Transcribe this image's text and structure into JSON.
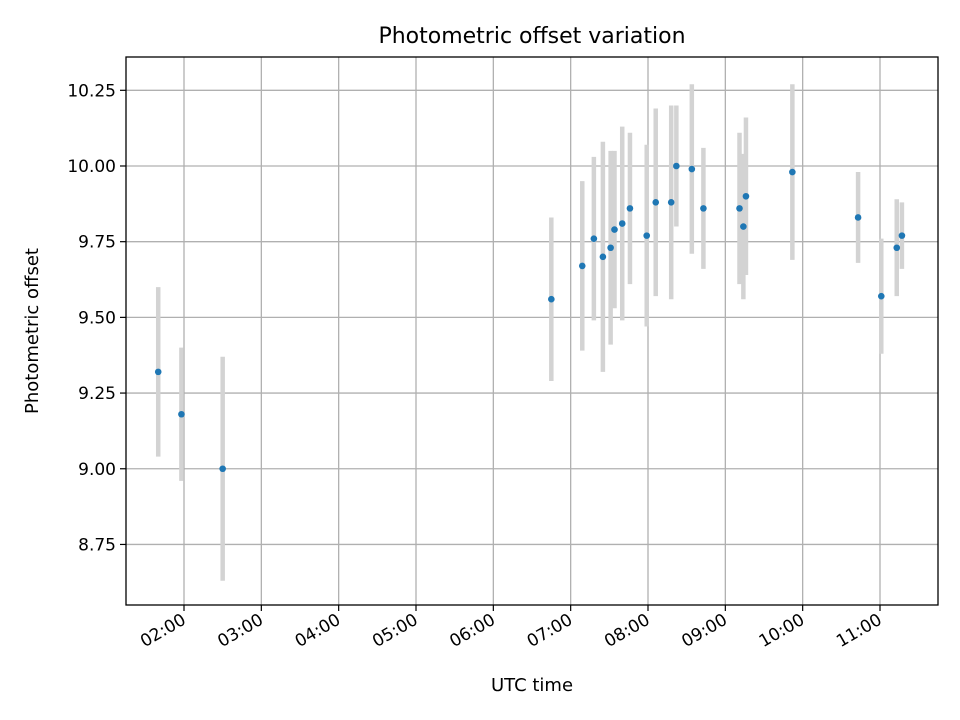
{
  "chart_data": {
    "type": "scatter",
    "title": "Photometric offset variation",
    "xlabel": "UTC time",
    "ylabel": "Photometric offset",
    "xlim": [
      "01:15",
      "11:45"
    ],
    "ylim": [
      8.55,
      10.36
    ],
    "x_ticks": [
      "02:00",
      "03:00",
      "04:00",
      "05:00",
      "06:00",
      "07:00",
      "08:00",
      "09:00",
      "10:00",
      "11:00"
    ],
    "y_ticks": [
      "8.75",
      "9.00",
      "9.25",
      "9.50",
      "9.75",
      "10.00",
      "10.25"
    ],
    "grid": true,
    "colors": {
      "marker": "#1f77b4",
      "errorbar": "#d3d3d3"
    },
    "series": [
      {
        "points": [
          {
            "x": "01:40",
            "y": 9.32,
            "err": 0.28
          },
          {
            "x": "01:58",
            "y": 9.18,
            "err": 0.22
          },
          {
            "x": "02:30",
            "y": 9.0,
            "err": 0.37
          },
          {
            "x": "06:45",
            "y": 9.56,
            "err": 0.27
          },
          {
            "x": "07:09",
            "y": 9.67,
            "err": 0.28
          },
          {
            "x": "07:18",
            "y": 9.76,
            "err": 0.27
          },
          {
            "x": "07:25",
            "y": 9.7,
            "err": 0.38
          },
          {
            "x": "07:31",
            "y": 9.73,
            "err": 0.32
          },
          {
            "x": "07:34",
            "y": 9.79,
            "err": 0.26
          },
          {
            "x": "07:40",
            "y": 9.81,
            "err": 0.32
          },
          {
            "x": "07:46",
            "y": 9.86,
            "err": 0.25
          },
          {
            "x": "07:59",
            "y": 9.77,
            "err": 0.3
          },
          {
            "x": "08:06",
            "y": 9.88,
            "err": 0.31
          },
          {
            "x": "08:18",
            "y": 9.88,
            "err": 0.32
          },
          {
            "x": "08:22",
            "y": 10.0,
            "err": 0.2
          },
          {
            "x": "08:34",
            "y": 9.99,
            "err": 0.28
          },
          {
            "x": "08:43",
            "y": 9.86,
            "err": 0.2
          },
          {
            "x": "09:11",
            "y": 9.86,
            "err": 0.25
          },
          {
            "x": "09:14",
            "y": 9.8,
            "err": 0.24
          },
          {
            "x": "09:16",
            "y": 9.9,
            "err": 0.26
          },
          {
            "x": "09:52",
            "y": 9.98,
            "err": 0.29
          },
          {
            "x": "10:43",
            "y": 9.83,
            "err": 0.15
          },
          {
            "x": "11:01",
            "y": 9.57,
            "err": 0.19
          },
          {
            "x": "11:13",
            "y": 9.73,
            "err": 0.16
          },
          {
            "x": "11:17",
            "y": 9.77,
            "err": 0.11
          }
        ]
      }
    ]
  }
}
